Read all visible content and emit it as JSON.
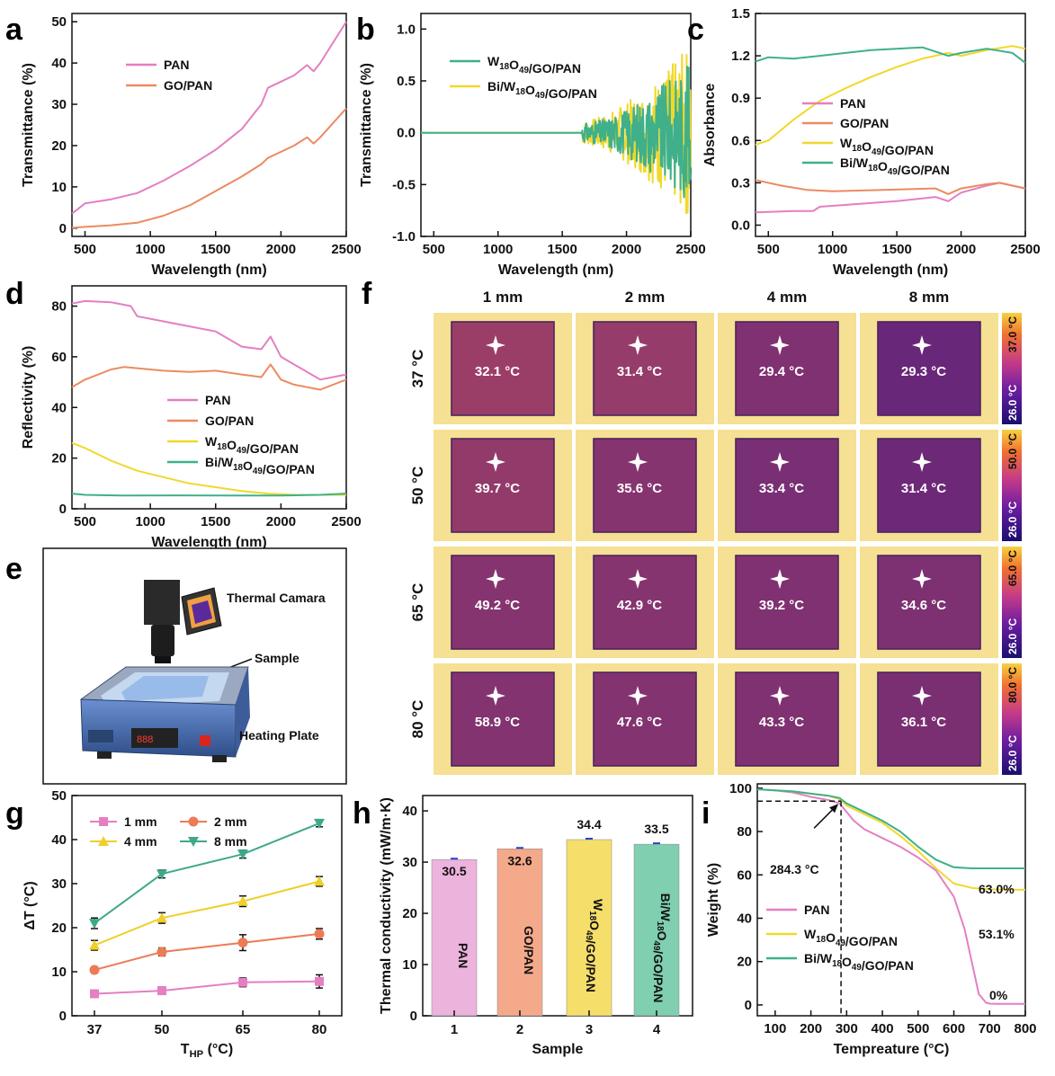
{
  "panel_labels": [
    "a",
    "b",
    "c",
    "d",
    "e",
    "f",
    "g",
    "h",
    "i"
  ],
  "colors": {
    "PAN": "#e47fc2",
    "GO/PAN": "#ec8a62",
    "W18O49/GO/PAN": "#f2d82c",
    "Bi/W18O49/GO/PAN": "#3fb08a",
    "1mm": "#e47fc2",
    "2mm": "#ec7b56",
    "4mm": "#f0cf2a",
    "8mm": "#3fa88a"
  },
  "chart_data": [
    {
      "id": "a",
      "type": "line",
      "xlabel": "Wavelength (nm)",
      "ylabel": "Transmittance (%)",
      "xlim": [
        400,
        2500
      ],
      "ylim": [
        -2,
        52
      ],
      "xticks": [
        "500",
        "1000",
        "1500",
        "2000",
        "2500"
      ],
      "yticks": [
        "0",
        "10",
        "20",
        "30",
        "40",
        "50"
      ],
      "legend": [
        "PAN",
        "GO/PAN"
      ],
      "series": [
        {
          "name": "PAN",
          "x": [
            400,
            500,
            700,
            900,
            1100,
            1300,
            1500,
            1700,
            1850,
            1900,
            2000,
            2100,
            2200,
            2250,
            2300,
            2400,
            2500
          ],
          "y": [
            3.5,
            6,
            7,
            8.5,
            11.5,
            15,
            19,
            24,
            30,
            34,
            35.5,
            37,
            39.5,
            38,
            40,
            45,
            50
          ]
        },
        {
          "name": "GO/PAN",
          "x": [
            400,
            500,
            700,
            900,
            1100,
            1300,
            1500,
            1700,
            1850,
            1900,
            2000,
            2100,
            2200,
            2250,
            2300,
            2400,
            2500
          ],
          "y": [
            0.1,
            0.3,
            0.7,
            1.3,
            3,
            5.5,
            9,
            12.5,
            15.5,
            17,
            18.5,
            20,
            22,
            20.5,
            22,
            25.5,
            29
          ]
        }
      ]
    },
    {
      "id": "b",
      "type": "line",
      "xlabel": "Wavelength (nm)",
      "ylabel": "Transmittance (%)",
      "xlim": [
        400,
        2500
      ],
      "ylim": [
        -1,
        1.15
      ],
      "xticks": [
        "500",
        "1000",
        "1500",
        "2000",
        "2500"
      ],
      "yticks": [
        "-1.0",
        "-0.5",
        "0.0",
        "0.5",
        "1.0"
      ],
      "legend": [
        "W₁₈O₄₉/GO/PAN",
        "Bi/W₁₈O₄₉/GO/PAN"
      ],
      "series": [
        {
          "name": "W18O49/GO/PAN",
          "x": [
            400,
            1600,
            2500
          ],
          "y": [
            0,
            0,
            0
          ],
          "noise_start": 1650,
          "noise_amp": 0.6
        },
        {
          "name": "Bi/W18O49/GO/PAN",
          "x": [
            400,
            1600,
            2500
          ],
          "y": [
            0,
            0,
            0
          ],
          "noise_start": 1650,
          "noise_amp": 0.75
        }
      ]
    },
    {
      "id": "c",
      "type": "line",
      "xlabel": "Wavelength (nm)",
      "ylabel": "Absorbance",
      "xlim": [
        400,
        2500
      ],
      "ylim": [
        -0.08,
        1.5
      ],
      "xticks": [
        "500",
        "1000",
        "1500",
        "2000",
        "2500"
      ],
      "yticks": [
        "0.0",
        "0.3",
        "0.6",
        "0.9",
        "1.2",
        "1.5"
      ],
      "legend": [
        "PAN",
        "GO/PAN",
        "W₁₈O₄₉/GO/PAN",
        "Bi/W₁₈O₄₉/GO/PAN"
      ],
      "series": [
        {
          "name": "PAN",
          "x": [
            400,
            700,
            850,
            900,
            1200,
            1500,
            1800,
            1900,
            2000,
            2200,
            2300,
            2500
          ],
          "y": [
            0.09,
            0.1,
            0.1,
            0.13,
            0.15,
            0.17,
            0.2,
            0.17,
            0.23,
            0.28,
            0.3,
            0.26
          ]
        },
        {
          "name": "GO/PAN",
          "x": [
            400,
            600,
            800,
            1000,
            1400,
            1800,
            1900,
            2000,
            2200,
            2300,
            2500
          ],
          "y": [
            0.32,
            0.28,
            0.25,
            0.24,
            0.25,
            0.26,
            0.22,
            0.26,
            0.29,
            0.3,
            0.26
          ]
        },
        {
          "name": "W18O49/GO/PAN",
          "x": [
            400,
            500,
            700,
            900,
            1100,
            1300,
            1500,
            1700,
            1900,
            2000,
            2200,
            2400,
            2500
          ],
          "y": [
            0.57,
            0.6,
            0.75,
            0.88,
            0.97,
            1.05,
            1.12,
            1.18,
            1.22,
            1.2,
            1.24,
            1.27,
            1.25
          ]
        },
        {
          "name": "Bi/W18O49/GO/PAN",
          "x": [
            400,
            500,
            700,
            900,
            1100,
            1300,
            1500,
            1700,
            1900,
            2000,
            2200,
            2400,
            2500
          ],
          "y": [
            1.16,
            1.19,
            1.18,
            1.2,
            1.22,
            1.24,
            1.25,
            1.26,
            1.2,
            1.22,
            1.25,
            1.22,
            1.15
          ]
        }
      ]
    },
    {
      "id": "d",
      "type": "line",
      "xlabel": "Wavelength (nm)",
      "ylabel": "Reflectivity (%)",
      "xlim": [
        400,
        2500
      ],
      "ylim": [
        0,
        88
      ],
      "xticks": [
        "500",
        "1000",
        "1500",
        "2000",
        "2500"
      ],
      "yticks": [
        "0",
        "20",
        "40",
        "60",
        "80"
      ],
      "legend": [
        "PAN",
        "GO/PAN",
        "W₁₈O₄₉/GO/PAN",
        "Bi/W₁₈O₄₉/GO/PAN"
      ],
      "series": [
        {
          "name": "PAN",
          "x": [
            400,
            500,
            700,
            850,
            900,
            1100,
            1300,
            1500,
            1700,
            1850,
            1920,
            2000,
            2100,
            2200,
            2300,
            2500
          ],
          "y": [
            81,
            82,
            81.5,
            80,
            76,
            74,
            72,
            70,
            64,
            63,
            68,
            60,
            57,
            54,
            51,
            53
          ]
        },
        {
          "name": "GO/PAN",
          "x": [
            400,
            500,
            700,
            800,
            900,
            1100,
            1300,
            1500,
            1700,
            1850,
            1920,
            2000,
            2100,
            2200,
            2300,
            2500
          ],
          "y": [
            48,
            51,
            55,
            56,
            55.5,
            54.5,
            54,
            54.5,
            53,
            52,
            57,
            51,
            49,
            48,
            47,
            51
          ]
        },
        {
          "name": "W18O49/GO/PAN",
          "x": [
            400,
            500,
            700,
            900,
            1100,
            1300,
            1500,
            1700,
            1900,
            2100,
            2300,
            2500
          ],
          "y": [
            26,
            24,
            19,
            15,
            12.5,
            10,
            8.5,
            7,
            6,
            5.5,
            5.5,
            5.5
          ]
        },
        {
          "name": "Bi/W18O49/GO/PAN",
          "x": [
            400,
            500,
            800,
            1200,
            1600,
            2000,
            2300,
            2500
          ],
          "y": [
            6,
            5.5,
            5.2,
            5.3,
            5.2,
            5.2,
            5.5,
            6
          ]
        }
      ]
    },
    {
      "id": "f",
      "type": "heatmap",
      "columns": [
        "1 mm",
        "2 mm",
        "4 mm",
        "8 mm"
      ],
      "rows": [
        "37 °C",
        "50 °C",
        "65 °C",
        "80 °C"
      ],
      "temperatures": [
        [
          "32.1 °C",
          "31.4 °C",
          "29.4 °C",
          "29.3 °C"
        ],
        [
          "39.7 °C",
          "35.6 °C",
          "33.4 °C",
          "31.4 °C"
        ],
        [
          "49.2 °C",
          "42.9 °C",
          "39.2 °C",
          "34.6 °C"
        ],
        [
          "58.9 °C",
          "47.6 °C",
          "43.3 °C",
          "36.1 °C"
        ]
      ],
      "colorbar_max": [
        "37.0 °C",
        "50.0 °C",
        "65.0 °C",
        "80.0 °C"
      ],
      "colorbar_min": [
        "26.0 °C",
        "26.0 °C",
        "26.0 °C",
        "26.0 °C"
      ],
      "sample_warmth": [
        [
          0.62,
          0.58,
          0.4,
          0.22
        ],
        [
          0.55,
          0.45,
          0.35,
          0.25
        ],
        [
          0.45,
          0.45,
          0.4,
          0.38
        ],
        [
          0.42,
          0.42,
          0.4,
          0.36
        ]
      ]
    },
    {
      "id": "g",
      "type": "line",
      "xlabel": "T_HP (°C)",
      "ylabel": "ΔT (°C)",
      "ylim": [
        0,
        50
      ],
      "categories": [
        "37",
        "50",
        "65",
        "80"
      ],
      "yticks": [
        "0",
        "10",
        "20",
        "30",
        "40",
        "50"
      ],
      "series": [
        {
          "name": "1 mm",
          "values": [
            5,
            5.7,
            7.6,
            7.8
          ],
          "err": [
            0.7,
            0.8,
            1,
            1.5
          ]
        },
        {
          "name": "2 mm",
          "values": [
            10.4,
            14.5,
            16.6,
            18.6
          ],
          "err": [
            0.7,
            0.9,
            1.8,
            1.2
          ]
        },
        {
          "name": "4 mm",
          "values": [
            16,
            22.2,
            26,
            30.5
          ],
          "err": [
            1.1,
            1.2,
            1.2,
            1.1
          ]
        },
        {
          "name": "8 mm",
          "values": [
            21,
            32.2,
            36.7,
            43.7
          ],
          "err": [
            1.2,
            0.9,
            0.9,
            0.8
          ]
        }
      ]
    },
    {
      "id": "h",
      "type": "bar",
      "xlabel": "Sample",
      "ylabel": "Thermal conductivity (mW/m·K)",
      "ylim": [
        0,
        43
      ],
      "categories": [
        "1",
        "2",
        "3",
        "4"
      ],
      "yticks": [
        "0",
        "10",
        "20",
        "30",
        "40"
      ],
      "values": [
        30.5,
        32.6,
        34.4,
        33.5
      ],
      "value_labels": [
        "30.5",
        "32.6",
        "34.4",
        "33.5"
      ],
      "bar_labels": [
        "PAN",
        "GO/PAN",
        "W₁₈O₄₉/GO/PAN",
        "Bi/W₁₈O₄₉/GO/PAN"
      ]
    },
    {
      "id": "i",
      "type": "line",
      "xlabel": "Tempreature (°C)",
      "ylabel": "Weight (%)",
      "xlim": [
        50,
        800
      ],
      "ylim": [
        -5,
        102
      ],
      "xticks": [
        "100",
        "200",
        "300",
        "400",
        "500",
        "600",
        "700",
        "800"
      ],
      "yticks": [
        "0",
        "20",
        "40",
        "60",
        "80",
        "100"
      ],
      "legend": [
        "PAN",
        "W₁₈O₄₉/GO/PAN",
        "Bi/W₁₈O₄₉/GO/PAN"
      ],
      "annotations": {
        "onset": "284.3 °C",
        "onset_x": 284.3,
        "onset_y": 94,
        "res_bi": "63.0%",
        "res_w": "53.1%",
        "res_pan": "0%"
      },
      "series": [
        {
          "name": "PAN",
          "x": [
            50,
            100,
            150,
            200,
            250,
            280,
            300,
            320,
            350,
            400,
            450,
            500,
            550,
            600,
            630,
            650,
            670,
            690,
            700,
            720,
            800
          ],
          "y": [
            99.5,
            99,
            98,
            96,
            94.5,
            93,
            89,
            85,
            81,
            77,
            73,
            68,
            62,
            50,
            35,
            20,
            5,
            1,
            0.6,
            0.5,
            0.5
          ]
        },
        {
          "name": "W18O49/GO/PAN",
          "x": [
            50,
            100,
            150,
            200,
            250,
            280,
            300,
            350,
            400,
            450,
            500,
            550,
            600,
            650,
            700,
            800
          ],
          "y": [
            99.5,
            99,
            98.5,
            97.5,
            96.5,
            95,
            92,
            88,
            84,
            78,
            71,
            63,
            56,
            54,
            53.3,
            53.1
          ]
        },
        {
          "name": "Bi/W18O49/GO/PAN",
          "x": [
            50,
            100,
            150,
            200,
            250,
            280,
            300,
            350,
            400,
            450,
            500,
            550,
            600,
            650,
            700,
            800
          ],
          "y": [
            99.5,
            99,
            98.5,
            97.5,
            96.5,
            95.5,
            93,
            89,
            85,
            80,
            73,
            67,
            63.5,
            63,
            63,
            63
          ]
        }
      ]
    }
  ],
  "panel_e": {
    "camera_label": "Thermal Camara",
    "sample_label": "Sample",
    "plate_label": "Heating Plate"
  }
}
